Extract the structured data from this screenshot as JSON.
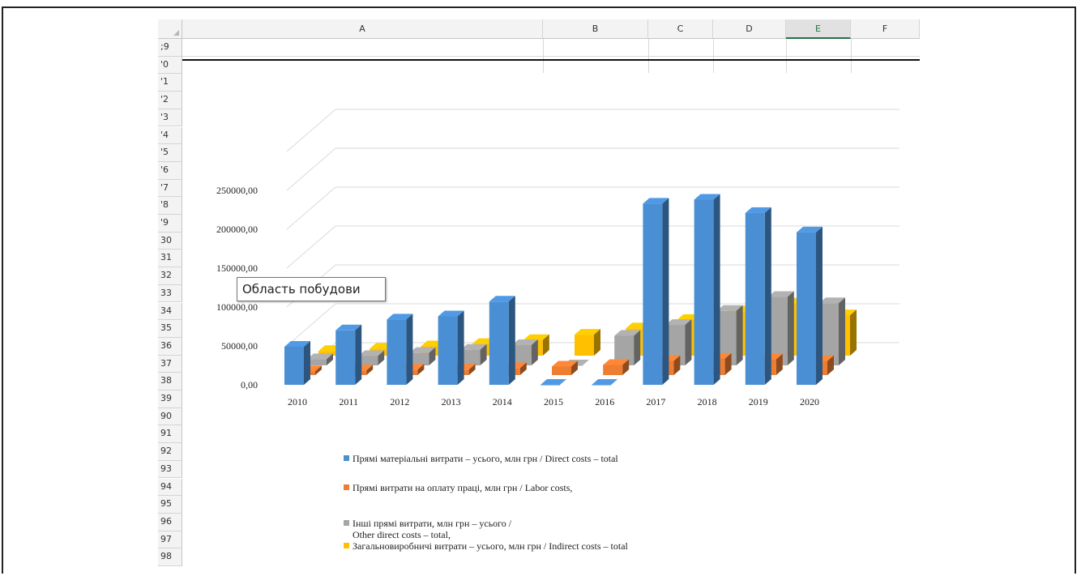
{
  "spreadsheet": {
    "columns": [
      {
        "label": "A",
        "selected": false
      },
      {
        "label": "B",
        "selected": false
      },
      {
        "label": "C",
        "selected": false
      },
      {
        "label": "D",
        "selected": false
      },
      {
        "label": "E",
        "selected": true
      },
      {
        "label": "F",
        "selected": false
      }
    ],
    "rows": [
      "69",
      "70",
      "71",
      "72",
      "73",
      "74",
      "75",
      "76",
      "77",
      "78",
      "79",
      "80",
      "81",
      "82",
      "83",
      "84",
      "85",
      "86",
      "87",
      "88",
      "89",
      "90",
      "91",
      "92",
      "93",
      "94",
      "95",
      "96",
      "97",
      "98"
    ],
    "row_display": [
      ";9",
      "'0",
      "'1",
      "'2",
      "'3",
      "'4",
      "'5",
      "'6",
      "'7",
      "'8",
      "'9",
      "30",
      "31",
      "32",
      "33",
      "34",
      "35",
      "36",
      "37",
      "38",
      "39",
      "90",
      "91",
      "92",
      "93",
      "94",
      "95",
      "96",
      "97",
      "98"
    ]
  },
  "tooltip": {
    "text": "Область побудови"
  },
  "chart_data": {
    "type": "bar",
    "style": "3d-column",
    "categories": [
      "2010",
      "2011",
      "2012",
      "2013",
      "2014",
      "2015",
      "2016",
      "2017",
      "2018",
      "2019",
      "2020"
    ],
    "y_tick_labels": [
      "0,00",
      "50000,00",
      "100000,00",
      "150000,00",
      "200000,00",
      "250000,00"
    ],
    "ylim": [
      0,
      300000
    ],
    "grid": true,
    "legend_position": "bottom",
    "series": [
      {
        "name": "Прямі матеріальні витрати – усього, млн грн / Direct costs – total",
        "color": "#4a8fd4",
        "values": [
          49000,
          70000,
          84000,
          88000,
          107000,
          0,
          0,
          233000,
          238000,
          221000,
          196000
        ]
      },
      {
        "name": "Прямі витрати на оплату праці, млн грн / Labor costs,",
        "color": "#ed7d31",
        "values": [
          5000,
          6000,
          7000,
          7000,
          9000,
          11000,
          13000,
          18000,
          21000,
          20000,
          18000
        ]
      },
      {
        "name": "Інші прямі витрати, млн грн – усього /\nOther direct costs – total,",
        "name_lines": [
          "Інші прямі витрати, млн грн – усього /",
          "Other direct costs – total,"
        ],
        "color": "#a5a5a5",
        "values": [
          8000,
          12000,
          16000,
          20000,
          26000,
          0,
          38000,
          52000,
          70000,
          88000,
          80000
        ]
      },
      {
        "name": "Загальновиробничі витрати – усього, млн грн  / Indirect costs – total",
        "color": "#ffc000",
        "values": [
          6000,
          9000,
          12000,
          15000,
          20000,
          27000,
          35000,
          46000,
          57000,
          67000,
          52000
        ]
      }
    ]
  }
}
